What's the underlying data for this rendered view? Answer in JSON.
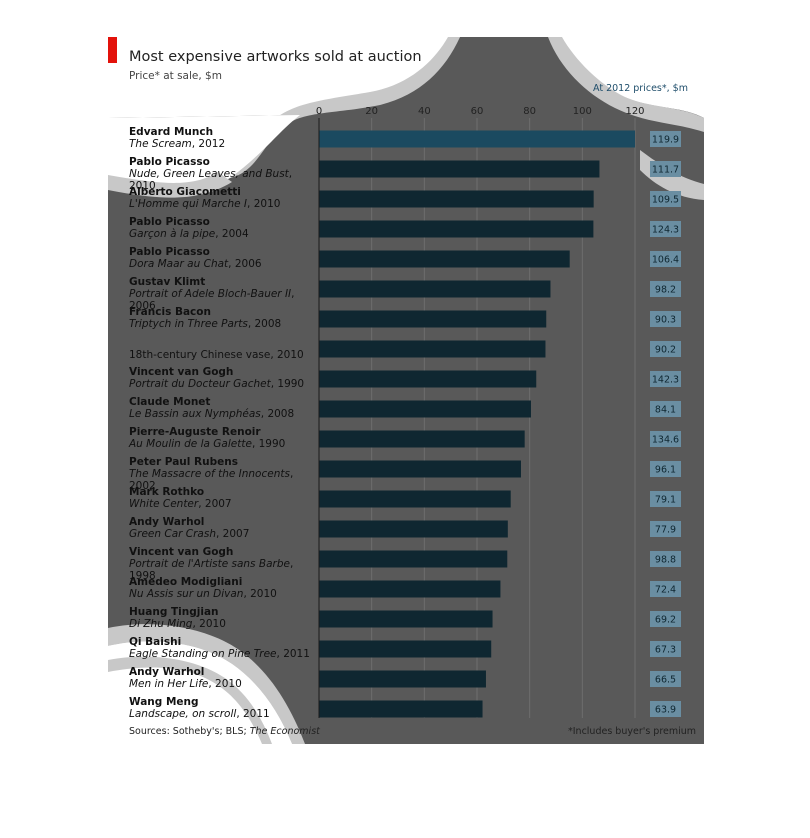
{
  "header": {
    "title": "Most expensive artworks sold at auction",
    "subtitle": "Price* at sale, $m",
    "right_header": "At 2012 prices*, $m"
  },
  "footer": {
    "source_prefix": "Sources: Sotheby's; BLS; ",
    "source_italic": "The Economist",
    "footnote": "*Includes buyer's premium"
  },
  "colors": {
    "brand_red": "#e3120b",
    "bar": "#0f2731",
    "highlight_bar": "#1b4a60",
    "inflation_box": "#6a8ea2",
    "panel": "#595959",
    "swoosh": "#c8c8c8"
  },
  "chart_data": {
    "type": "bar",
    "orientation": "horizontal",
    "title": "Most expensive artworks sold at auction",
    "subtitle": "Price* at sale, $m",
    "xlim": [
      0,
      120
    ],
    "ticks": [
      "0",
      "20",
      "40",
      "60",
      "80",
      "100",
      "120"
    ],
    "grid": true,
    "items": [
      {
        "artist": "Edvard Munch",
        "work": "The Scream",
        "year": "2012",
        "value": 120.0,
        "adjusted": "119.9"
      },
      {
        "artist": "Pablo Picasso",
        "work": "Nude, Green Leaves, and Bust",
        "year": "2010",
        "value": 106.5,
        "adjusted": "111.7"
      },
      {
        "artist": "Alberto Giacometti",
        "work": "L'Homme qui Marche I",
        "year": "2010",
        "value": 104.3,
        "adjusted": "109.5"
      },
      {
        "artist": "Pablo Picasso",
        "work": "Garçon à la pipe",
        "year": "2004",
        "value": 104.2,
        "adjusted": "124.3"
      },
      {
        "artist": "Pablo Picasso",
        "work": "Dora Maar au Chat",
        "year": "2006",
        "value": 95.2,
        "adjusted": "106.4"
      },
      {
        "artist": "Gustav Klimt",
        "work": "Portrait of Adele Bloch-Bauer II",
        "year": "2006",
        "value": 87.9,
        "adjusted": "98.2"
      },
      {
        "artist": "Francis Bacon",
        "work": "Triptych in Three Parts",
        "year": "2008",
        "value": 86.3,
        "adjusted": "90.3"
      },
      {
        "artist": "",
        "work": "18th-century Chinese vase",
        "year": "2010",
        "value": 86.0,
        "adjusted": "90.2"
      },
      {
        "artist": "Vincent van Gogh",
        "work": "Portrait du Docteur Gachet",
        "year": "1990",
        "value": 82.5,
        "adjusted": "142.3"
      },
      {
        "artist": "Claude Monet",
        "work": "Le Bassin aux Nymphéas",
        "year": "2008",
        "value": 80.5,
        "adjusted": "84.1"
      },
      {
        "artist": "Pierre-Auguste Renoir",
        "work": "Au Moulin de la Galette",
        "year": "1990",
        "value": 78.1,
        "adjusted": "134.6"
      },
      {
        "artist": "Peter Paul Rubens",
        "work": "The Massacre of the Innocents",
        "year": "2002",
        "value": 76.7,
        "adjusted": "96.1"
      },
      {
        "artist": "Mark Rothko",
        "work": "White Center",
        "year": "2007",
        "value": 72.8,
        "adjusted": "79.1"
      },
      {
        "artist": "Andy Warhol",
        "work": "Green Car Crash",
        "year": "2007",
        "value": 71.7,
        "adjusted": "77.9"
      },
      {
        "artist": "Vincent van Gogh",
        "work": "Portrait de l'Artiste sans Barbe",
        "year": "1998",
        "value": 71.5,
        "adjusted": "98.8"
      },
      {
        "artist": "Amedeo Modigliani",
        "work": "Nu Assis sur un Divan",
        "year": "2010",
        "value": 68.9,
        "adjusted": "72.4"
      },
      {
        "artist": "Huang Tingjian",
        "work": "Di Zhu Ming",
        "year": "2010",
        "value": 65.9,
        "adjusted": "69.2"
      },
      {
        "artist": "Qi Baishi",
        "work": "Eagle Standing on Pine Tree",
        "year": "2011",
        "value": 65.4,
        "adjusted": "67.3"
      },
      {
        "artist": "Andy Warhol",
        "work": "Men in Her Life",
        "year": "2010",
        "value": 63.4,
        "adjusted": "66.5"
      },
      {
        "artist": "Wang Meng",
        "work": "Landscape, on scroll",
        "year": "2011",
        "value": 62.1,
        "adjusted": "63.9"
      }
    ]
  }
}
